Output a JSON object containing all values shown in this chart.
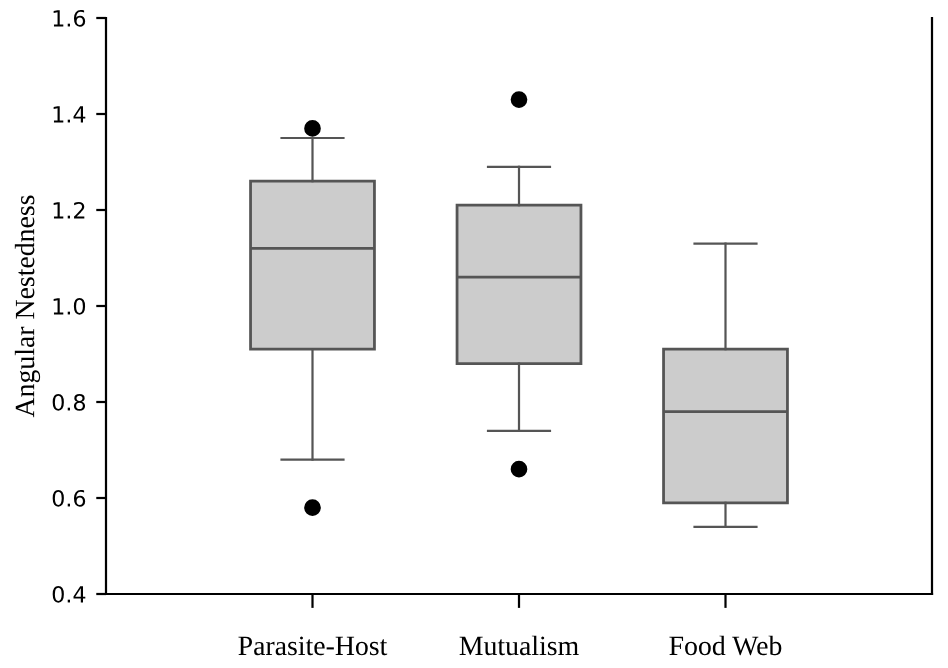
{
  "chart_data": {
    "type": "box",
    "ylabel": "Angular Nestedness",
    "categories": [
      "Parasite-Host",
      "Mutualism",
      "Food Web"
    ],
    "boxes": [
      {
        "low": 0.68,
        "q1": 0.91,
        "median": 1.12,
        "q3": 1.26,
        "high": 1.35,
        "outliers": [
          1.37,
          0.58
        ]
      },
      {
        "low": 0.74,
        "q1": 0.88,
        "median": 1.06,
        "q3": 1.21,
        "high": 1.29,
        "outliers": [
          1.43,
          0.66
        ]
      },
      {
        "low": 0.54,
        "q1": 0.59,
        "median": 0.78,
        "q3": 0.91,
        "high": 1.13
      }
    ],
    "color": "#cccccc",
    "ylim": [
      0.4,
      1.6
    ],
    "yticks": [
      {
        "value": 0.4,
        "label": "0.4"
      },
      {
        "value": 0.6,
        "label": "0.6"
      },
      {
        "value": 0.8,
        "label": "0.8"
      },
      {
        "value": 1.0,
        "label": "1.0"
      },
      {
        "value": 1.2,
        "label": "1.2"
      },
      {
        "value": 1.4,
        "label": "1.4"
      },
      {
        "value": 1.6,
        "label": "1.6"
      }
    ],
    "grid": false
  }
}
